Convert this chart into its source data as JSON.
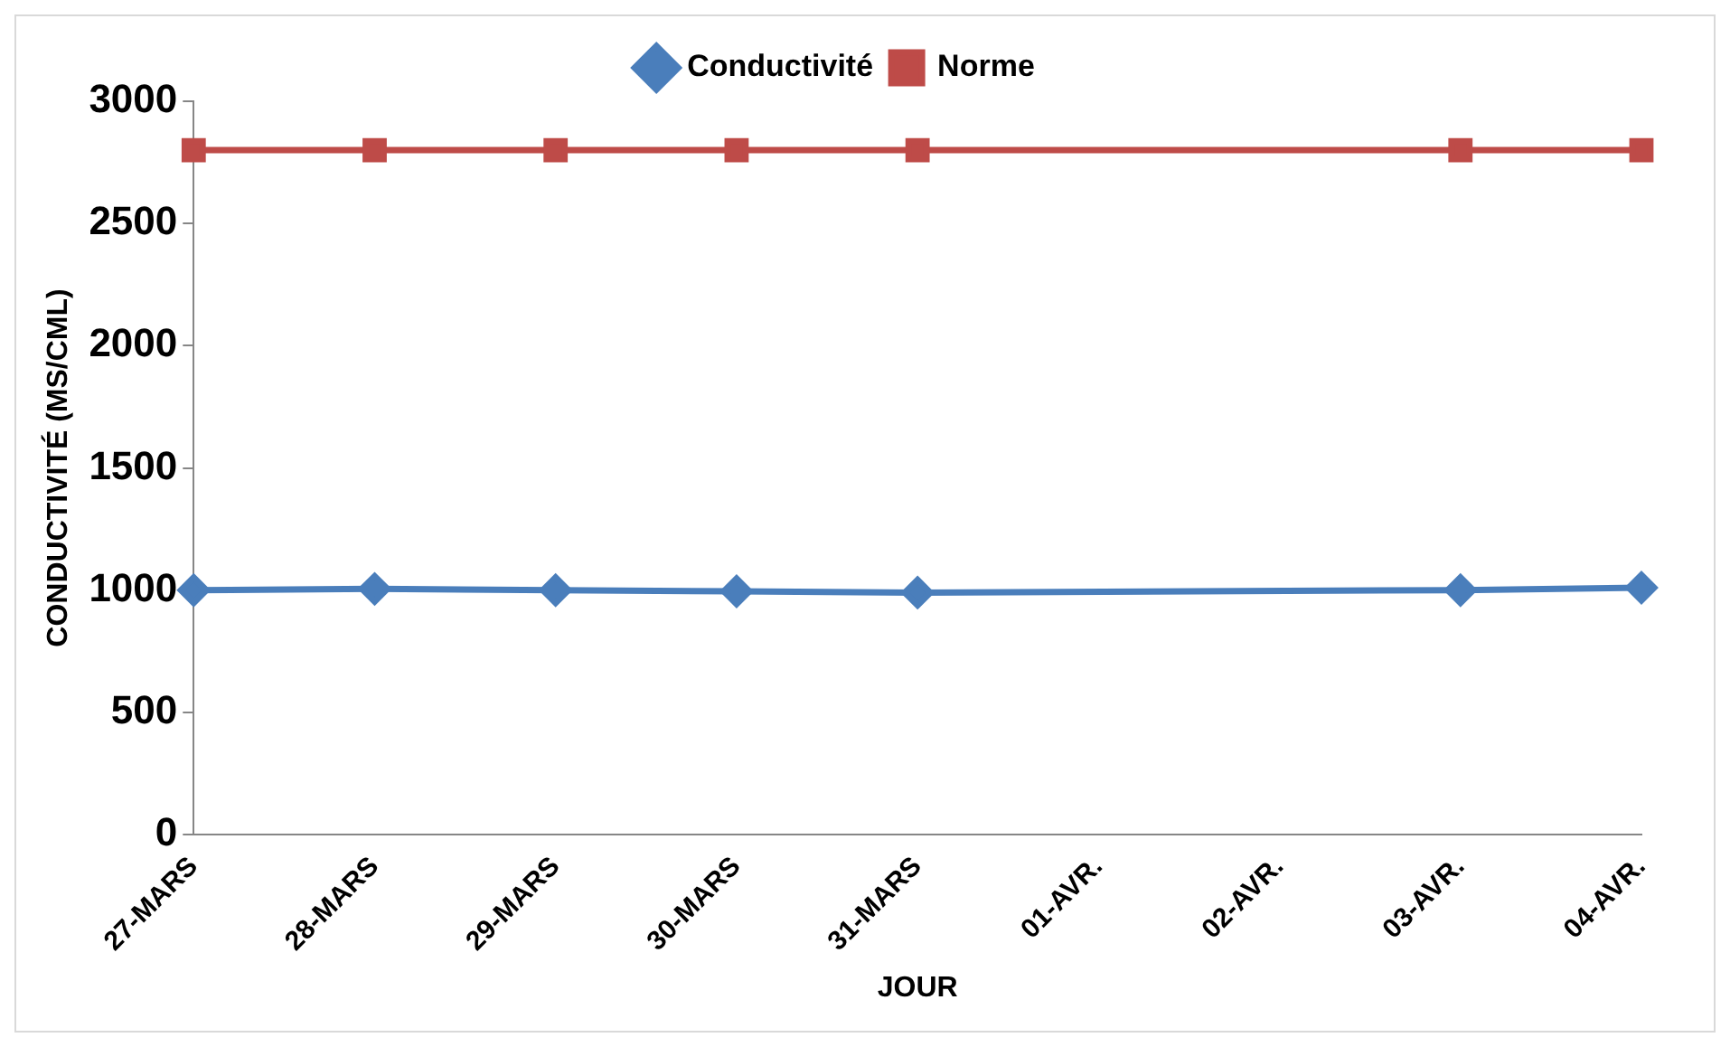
{
  "chart_data": {
    "type": "line",
    "xlabel": "JOUR",
    "ylabel": "CONDUCTIVITÉ (MS/CML)",
    "categories": [
      "27-MARS",
      "28-MARS",
      "29-MARS",
      "30-MARS",
      "31-MARS",
      "01-AVR.",
      "02-AVR.",
      "03-AVR.",
      "04-AVR."
    ],
    "series": [
      {
        "name": "Conductivité",
        "color": "#4a7ebb",
        "marker": "diamond",
        "values": [
          1000,
          1005,
          1000,
          995,
          990,
          null,
          null,
          1000,
          1010
        ]
      },
      {
        "name": "Norme",
        "color": "#be4b48",
        "marker": "square",
        "values": [
          2800,
          2800,
          2800,
          2800,
          2800,
          null,
          null,
          2800,
          2800
        ]
      }
    ],
    "ylim": [
      0,
      3000
    ],
    "yticks": [
      0,
      500,
      1000,
      1500,
      2000,
      2500,
      3000
    ],
    "grid": false,
    "legend": "top"
  }
}
